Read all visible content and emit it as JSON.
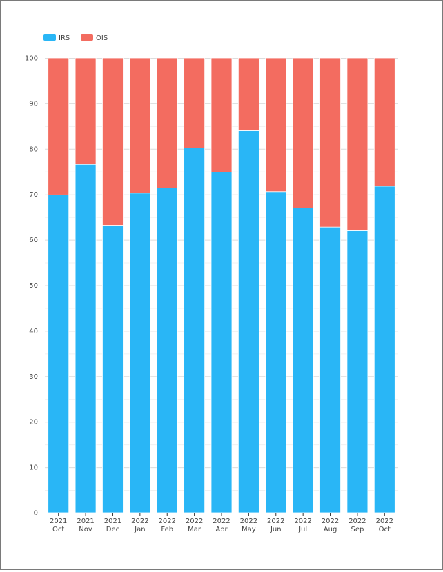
{
  "chart_data": {
    "type": "bar",
    "stacked": true,
    "title": "",
    "xlabel": "",
    "ylabel": "",
    "ylim": [
      0,
      100
    ],
    "y_ticks": [
      0,
      10,
      20,
      30,
      40,
      50,
      60,
      70,
      80,
      90,
      100
    ],
    "grid": true,
    "legend_position": "top-left",
    "categories": [
      [
        "2021",
        "Oct"
      ],
      [
        "2021",
        "Nov"
      ],
      [
        "2021",
        "Dec"
      ],
      [
        "2022",
        "Jan"
      ],
      [
        "2022",
        "Feb"
      ],
      [
        "2022",
        "Mar"
      ],
      [
        "2022",
        "Apr"
      ],
      [
        "2022",
        "May"
      ],
      [
        "2022",
        "Jun"
      ],
      [
        "2022",
        "Jul"
      ],
      [
        "2022",
        "Aug"
      ],
      [
        "2022",
        "Sep"
      ],
      [
        "2022",
        "Oct"
      ]
    ],
    "series": [
      {
        "name": "IRS",
        "color": "#29b6f6",
        "values": [
          69.9,
          76.6,
          63.2,
          70.3,
          71.4,
          80.2,
          74.9,
          84.0,
          70.6,
          67.0,
          62.8,
          62.0,
          71.8
        ]
      },
      {
        "name": "OIS",
        "color": "#f36c60",
        "values": [
          30.1,
          23.4,
          36.8,
          29.7,
          28.6,
          19.8,
          25.1,
          16.0,
          29.4,
          33.0,
          37.2,
          38.0,
          28.2
        ]
      }
    ]
  }
}
